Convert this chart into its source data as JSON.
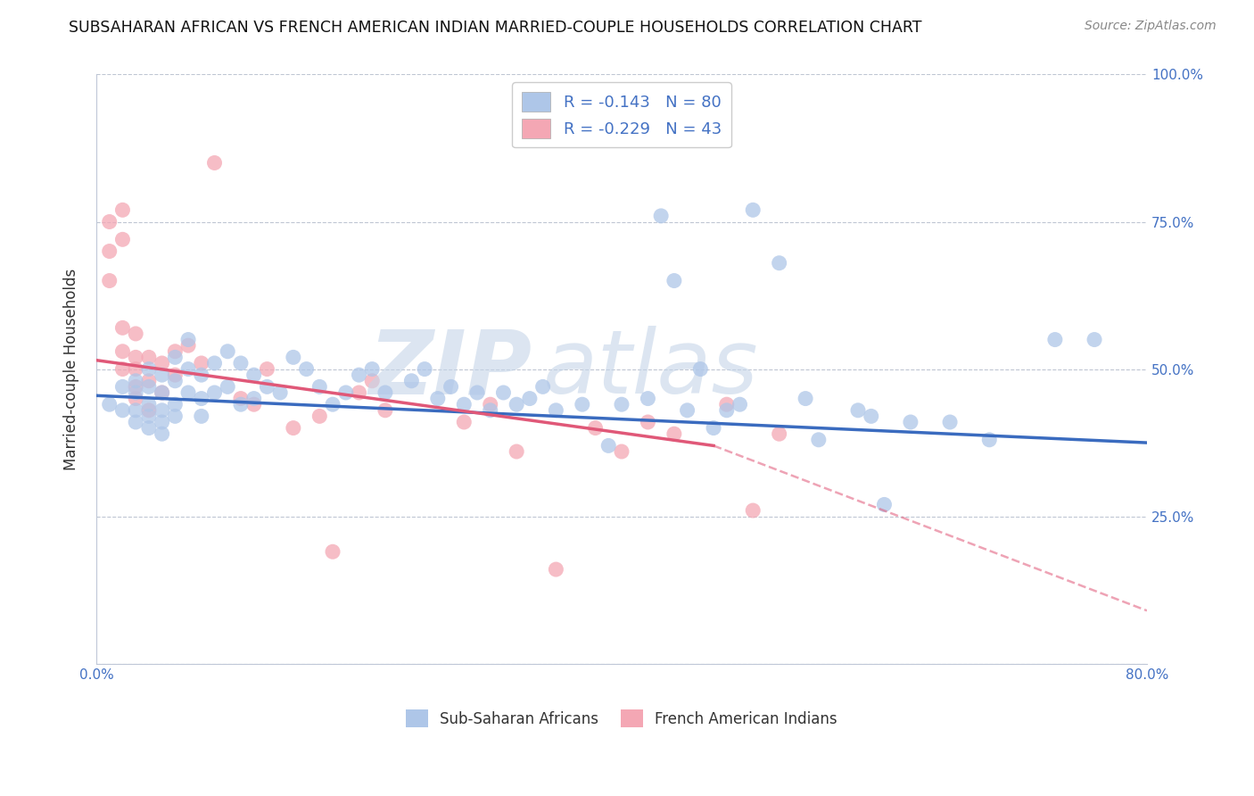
{
  "title": "SUBSAHARAN AFRICAN VS FRENCH AMERICAN INDIAN MARRIED-COUPLE HOUSEHOLDS CORRELATION CHART",
  "source": "Source: ZipAtlas.com",
  "ylabel": "Married-couple Households",
  "xmin": 0.0,
  "xmax": 0.8,
  "ymin": 0.0,
  "ymax": 1.0,
  "yticks": [
    0.0,
    0.25,
    0.5,
    0.75,
    1.0
  ],
  "ytick_labels": [
    "",
    "25.0%",
    "50.0%",
    "75.0%",
    "100.0%"
  ],
  "xtick_labels": [
    "0.0%",
    "",
    "",
    "",
    "",
    "",
    "",
    "",
    "80.0%"
  ],
  "legend_label1": "R = -0.143   N = 80",
  "legend_label2": "R = -0.229   N = 43",
  "legend_color1": "#aec6e8",
  "legend_color2": "#f4a7b4",
  "scatter1_color": "#aec6e8",
  "scatter2_color": "#f4a7b4",
  "line1_color": "#3a6bbf",
  "line2_color": "#e05878",
  "blue_points_x": [
    0.01,
    0.02,
    0.02,
    0.03,
    0.03,
    0.03,
    0.03,
    0.04,
    0.04,
    0.04,
    0.04,
    0.04,
    0.05,
    0.05,
    0.05,
    0.05,
    0.05,
    0.06,
    0.06,
    0.06,
    0.06,
    0.07,
    0.07,
    0.07,
    0.08,
    0.08,
    0.08,
    0.09,
    0.09,
    0.1,
    0.1,
    0.11,
    0.11,
    0.12,
    0.12,
    0.13,
    0.14,
    0.15,
    0.16,
    0.17,
    0.18,
    0.19,
    0.2,
    0.21,
    0.22,
    0.24,
    0.25,
    0.26,
    0.27,
    0.28,
    0.29,
    0.3,
    0.31,
    0.32,
    0.33,
    0.34,
    0.35,
    0.37,
    0.39,
    0.4,
    0.42,
    0.43,
    0.44,
    0.45,
    0.46,
    0.47,
    0.48,
    0.49,
    0.5,
    0.52,
    0.54,
    0.55,
    0.58,
    0.59,
    0.6,
    0.62,
    0.65,
    0.68,
    0.73,
    0.76
  ],
  "blue_points_y": [
    0.44,
    0.47,
    0.43,
    0.48,
    0.46,
    0.43,
    0.41,
    0.5,
    0.47,
    0.44,
    0.42,
    0.4,
    0.49,
    0.46,
    0.43,
    0.41,
    0.39,
    0.52,
    0.48,
    0.44,
    0.42,
    0.55,
    0.5,
    0.46,
    0.49,
    0.45,
    0.42,
    0.51,
    0.46,
    0.53,
    0.47,
    0.51,
    0.44,
    0.49,
    0.45,
    0.47,
    0.46,
    0.52,
    0.5,
    0.47,
    0.44,
    0.46,
    0.49,
    0.5,
    0.46,
    0.48,
    0.5,
    0.45,
    0.47,
    0.44,
    0.46,
    0.43,
    0.46,
    0.44,
    0.45,
    0.47,
    0.43,
    0.44,
    0.37,
    0.44,
    0.45,
    0.76,
    0.65,
    0.43,
    0.5,
    0.4,
    0.43,
    0.44,
    0.77,
    0.68,
    0.45,
    0.38,
    0.43,
    0.42,
    0.27,
    0.41,
    0.41,
    0.38,
    0.55,
    0.55
  ],
  "pink_points_x": [
    0.01,
    0.01,
    0.01,
    0.02,
    0.02,
    0.02,
    0.02,
    0.02,
    0.03,
    0.03,
    0.03,
    0.03,
    0.03,
    0.04,
    0.04,
    0.04,
    0.05,
    0.05,
    0.06,
    0.06,
    0.07,
    0.08,
    0.09,
    0.11,
    0.12,
    0.13,
    0.15,
    0.17,
    0.18,
    0.2,
    0.21,
    0.22,
    0.28,
    0.3,
    0.32,
    0.35,
    0.38,
    0.4,
    0.42,
    0.44,
    0.48,
    0.5,
    0.52
  ],
  "pink_points_y": [
    0.75,
    0.7,
    0.65,
    0.77,
    0.72,
    0.57,
    0.53,
    0.5,
    0.56,
    0.52,
    0.5,
    0.47,
    0.45,
    0.52,
    0.48,
    0.43,
    0.51,
    0.46,
    0.53,
    0.49,
    0.54,
    0.51,
    0.85,
    0.45,
    0.44,
    0.5,
    0.4,
    0.42,
    0.19,
    0.46,
    0.48,
    0.43,
    0.41,
    0.44,
    0.36,
    0.16,
    0.4,
    0.36,
    0.41,
    0.39,
    0.44,
    0.26,
    0.39
  ],
  "line1_x_start": 0.0,
  "line1_x_end": 0.8,
  "line1_y_start": 0.455,
  "line1_y_end": 0.375,
  "line2_solid_x_start": 0.0,
  "line2_solid_x_end": 0.47,
  "line2_y_start": 0.515,
  "line2_y_at_solid_end": 0.37,
  "line2_dash_x_end": 0.8,
  "line2_y_at_dash_end": 0.09,
  "watermark_zip": "ZIP",
  "watermark_atlas": "atlas"
}
